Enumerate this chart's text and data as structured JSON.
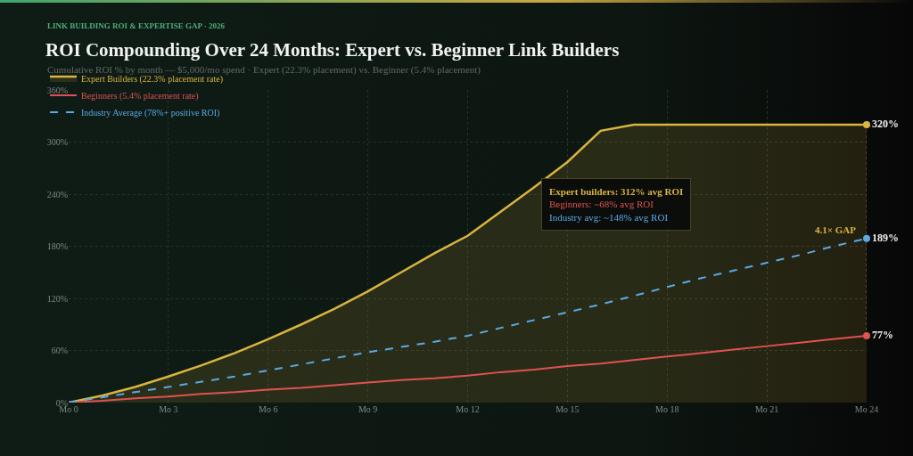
{
  "chart_data": {
    "type": "line",
    "title": "ROI Compounding Over 24 Months: Expert vs. Beginner Link Builders",
    "subtitle": "Cumulative ROI % by month — $5,000/mo spend · Expert (22.3% placement) vs. Beginner (5.4% placement)",
    "categories": [
      "Mo 0",
      null,
      null,
      "Mo 3",
      null,
      null,
      "Mo 6",
      null,
      null,
      "Mo 9",
      null,
      null,
      "Mo 12",
      null,
      null,
      "Mo 15",
      null,
      null,
      "Mo 18",
      null,
      null,
      "Mo 21",
      null,
      null,
      "Mo 24"
    ],
    "series": [
      {
        "name": "Expert Builders (22.3% placement rate)",
        "type": "area",
        "color": "#d9b43f",
        "line_style": "solid",
        "values": [
          0,
          8,
          18,
          30,
          43,
          57,
          73,
          90,
          108,
          128,
          150,
          172,
          192,
          220,
          248,
          277,
          313,
          320,
          320,
          320,
          320,
          320,
          320,
          320,
          320
        ],
        "value_labels": [
          null,
          null,
          null,
          null,
          null,
          null,
          null,
          null,
          null,
          null,
          null,
          null,
          null,
          null,
          null,
          null,
          null,
          null,
          null,
          null,
          null,
          null,
          null,
          null,
          "320%"
        ]
      },
      {
        "name": "Beginners (5.4% placement rate)",
        "color": "#e05252",
        "line_style": "solid",
        "values": [
          0,
          2,
          5,
          7,
          10,
          12,
          15,
          17,
          20,
          23,
          26,
          28,
          31,
          35,
          38,
          42,
          45,
          49,
          53,
          57,
          61,
          65,
          69,
          73,
          77
        ],
        "value_labels": [
          null,
          null,
          null,
          null,
          null,
          null,
          null,
          null,
          null,
          null,
          null,
          null,
          null,
          null,
          null,
          null,
          null,
          null,
          null,
          null,
          null,
          null,
          null,
          null,
          "77%"
        ]
      },
      {
        "name": "Industry Average (78%+ positive ROI)",
        "color": "#5aa9e6",
        "line_style": "dashed",
        "values": [
          0,
          6,
          12,
          18,
          24,
          30,
          37,
          44,
          51,
          58,
          64,
          70,
          77,
          86,
          95,
          104,
          113,
          123,
          133,
          143,
          152,
          161,
          170,
          180,
          189
        ],
        "value_labels": [
          null,
          null,
          null,
          null,
          null,
          null,
          null,
          null,
          null,
          null,
          null,
          null,
          null,
          null,
          null,
          null,
          null,
          null,
          null,
          null,
          null,
          null,
          null,
          null,
          "189%"
        ]
      }
    ],
    "ylim": [
      0,
      360
    ],
    "yticks": [
      {
        "value": 0,
        "label": "0%"
      },
      {
        "value": 60,
        "label": "60%"
      },
      {
        "value": 120,
        "label": "120%"
      },
      {
        "value": 180,
        "label": "180%"
      },
      {
        "value": 240,
        "label": "240%"
      },
      {
        "value": 300,
        "label": "300%"
      },
      {
        "value": 360,
        "label": "360%"
      }
    ],
    "grid": true,
    "legend": "top left",
    "annotations": [
      "LINK BUILDING ROI & EXPERTISE GAP · 2026",
      "Expert builders: 312% avg ROI",
      "Beginners: ~68% avg ROI",
      "Industry avg: ~148% avg ROI",
      {
        "text": "4.1× GAP",
        "x": "Mo 24",
        "y": 189
      }
    ]
  }
}
